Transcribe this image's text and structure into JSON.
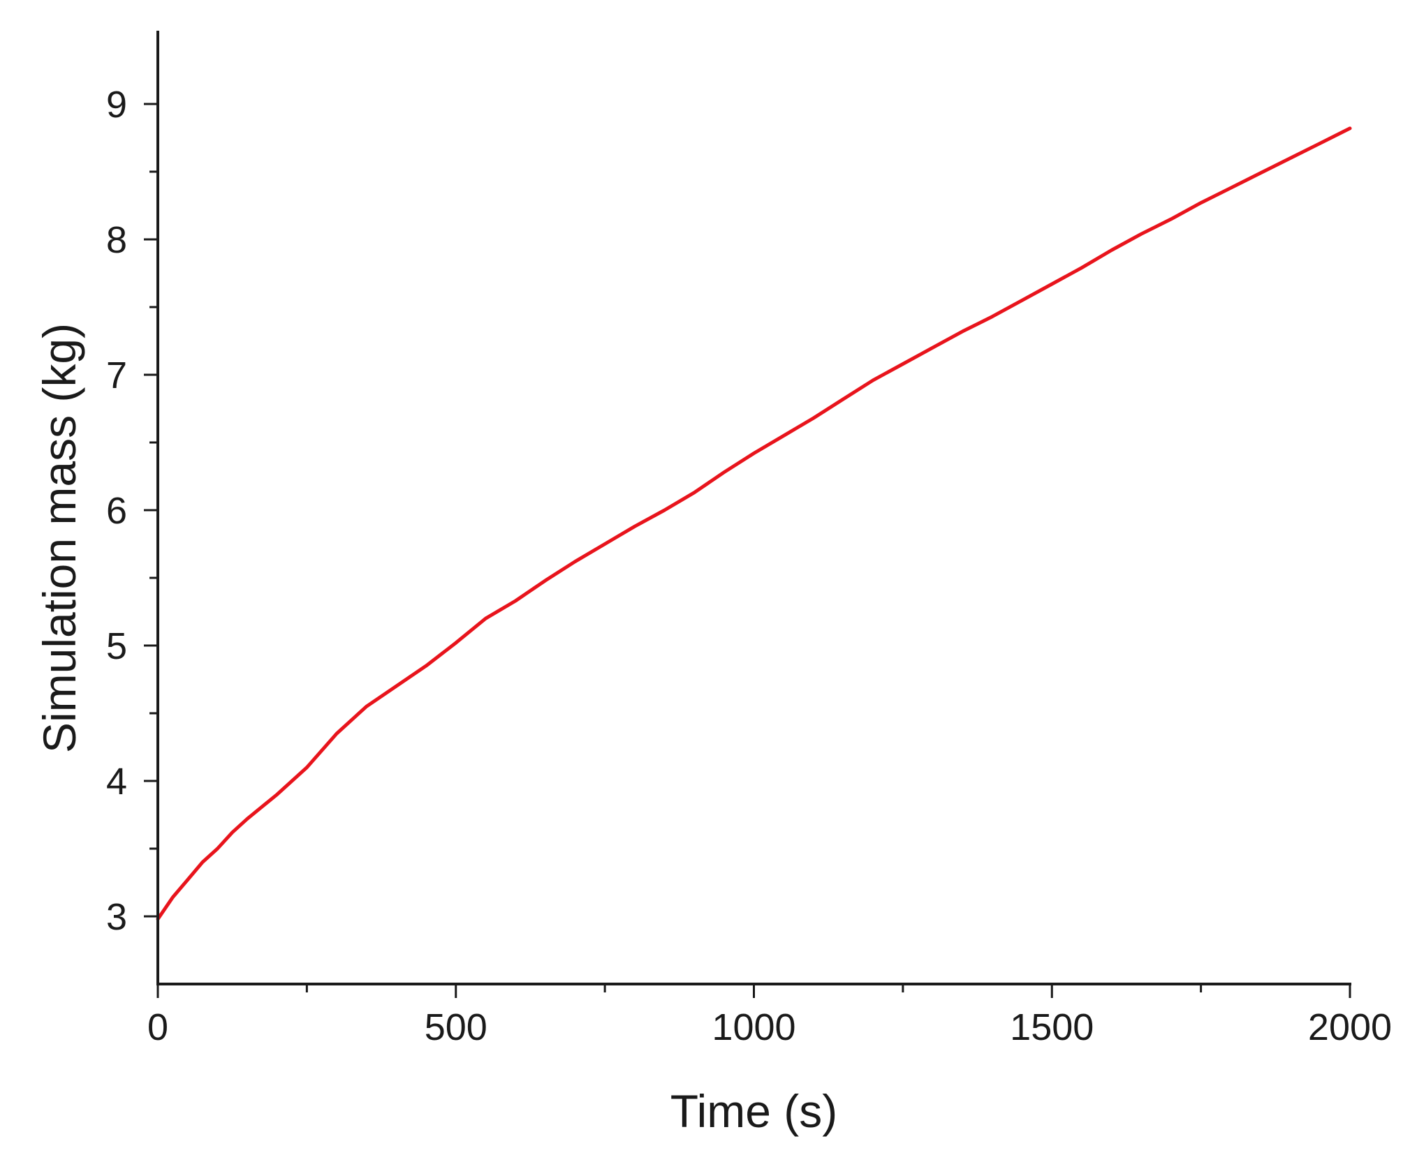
{
  "chart_data": {
    "type": "line",
    "xlabel": "Time (s)",
    "ylabel": "Simulation mass (kg)",
    "xlim": [
      0,
      2000
    ],
    "ylim": [
      2.5,
      9.5
    ],
    "x_ticks": [
      0,
      500,
      1000,
      1500,
      2000
    ],
    "x_minor_ticks": [
      250,
      750,
      1250,
      1750
    ],
    "y_ticks": [
      3,
      4,
      5,
      6,
      7,
      8,
      9
    ],
    "y_minor_ticks": [
      3.5,
      4.5,
      5.5,
      6.5,
      7.5,
      8.5
    ],
    "x_tick_labels": [
      "0",
      "500",
      "1000",
      "1500",
      "2000"
    ],
    "y_tick_labels": [
      "3",
      "4",
      "5",
      "6",
      "7",
      "8",
      "9"
    ],
    "grid": false,
    "legend": "none",
    "series": [
      {
        "color": "#e8141c",
        "x": [
          0,
          25,
          50,
          75,
          100,
          125,
          150,
          200,
          250,
          300,
          350,
          400,
          450,
          500,
          550,
          600,
          650,
          700,
          750,
          800,
          850,
          900,
          950,
          1000,
          1050,
          1100,
          1150,
          1200,
          1250,
          1300,
          1350,
          1400,
          1450,
          1500,
          1550,
          1600,
          1650,
          1700,
          1750,
          1800,
          1850,
          1900,
          1950,
          2000
        ],
        "y": [
          2.98,
          3.14,
          3.27,
          3.4,
          3.5,
          3.62,
          3.72,
          3.9,
          4.1,
          4.35,
          4.55,
          4.7,
          4.85,
          5.02,
          5.2,
          5.33,
          5.48,
          5.62,
          5.75,
          5.88,
          6.0,
          6.13,
          6.28,
          6.42,
          6.55,
          6.68,
          6.82,
          6.96,
          7.08,
          7.2,
          7.32,
          7.43,
          7.55,
          7.67,
          7.79,
          7.92,
          8.04,
          8.15,
          8.27,
          8.38,
          8.49,
          8.6,
          8.71,
          8.82
        ]
      }
    ]
  }
}
